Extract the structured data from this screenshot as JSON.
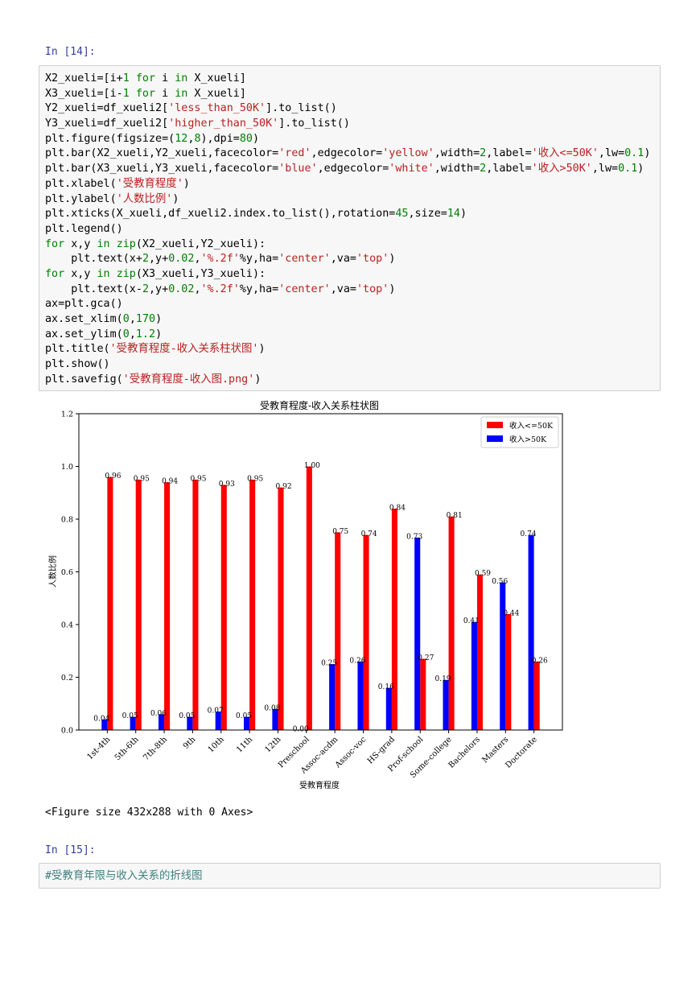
{
  "cells": [
    {
      "prompt": "In  [14]:",
      "code_lines": [
        [
          [
            "plain",
            "X2_xueli=[i+"
          ],
          [
            "num",
            "1"
          ],
          [
            "plain",
            " "
          ],
          [
            "kw",
            "for"
          ],
          [
            "plain",
            " i "
          ],
          [
            "kw",
            "in"
          ],
          [
            "plain",
            " X_xueli]"
          ]
        ],
        [
          [
            "plain",
            "X3_xueli=[i-"
          ],
          [
            "num",
            "1"
          ],
          [
            "plain",
            " "
          ],
          [
            "kw",
            "for"
          ],
          [
            "plain",
            " i "
          ],
          [
            "kw",
            "in"
          ],
          [
            "plain",
            " X_xueli]"
          ]
        ],
        [
          [
            "plain",
            "Y2_xueli=df_xueli2["
          ],
          [
            "str",
            "'less_than_50K'"
          ],
          [
            "plain",
            "].to_list()"
          ]
        ],
        [
          [
            "plain",
            "Y3_xueli=df_xueli2["
          ],
          [
            "str",
            "'higher_than_50K'"
          ],
          [
            "plain",
            "].to_list()"
          ]
        ],
        [
          [
            "plain",
            "plt.figure(figsize=("
          ],
          [
            "num",
            "12"
          ],
          [
            "plain",
            ","
          ],
          [
            "num",
            "8"
          ],
          [
            "plain",
            "),dpi="
          ],
          [
            "num",
            "80"
          ],
          [
            "plain",
            ")"
          ]
        ],
        [
          [
            "plain",
            "plt.bar(X2_xueli,Y2_xueli,facecolor="
          ],
          [
            "str",
            "'red'"
          ],
          [
            "plain",
            ",edgecolor="
          ],
          [
            "str",
            "'yellow'"
          ],
          [
            "plain",
            ",width="
          ],
          [
            "num",
            "2"
          ],
          [
            "plain",
            ",label="
          ],
          [
            "str",
            "'收入<=50K'"
          ],
          [
            "plain",
            ",lw="
          ],
          [
            "num",
            "0.1"
          ],
          [
            "plain",
            ")"
          ]
        ],
        [
          [
            "plain",
            "plt.bar(X3_xueli,Y3_xueli,facecolor="
          ],
          [
            "str",
            "'blue'"
          ],
          [
            "plain",
            ",edgecolor="
          ],
          [
            "str",
            "'white'"
          ],
          [
            "plain",
            ",width="
          ],
          [
            "num",
            "2"
          ],
          [
            "plain",
            ",label="
          ],
          [
            "str",
            "'收入>50K'"
          ],
          [
            "plain",
            ",lw="
          ],
          [
            "num",
            "0.1"
          ],
          [
            "plain",
            ")"
          ]
        ],
        [
          [
            "plain",
            "plt.xlabel("
          ],
          [
            "str",
            "'受教育程度'"
          ],
          [
            "plain",
            ")"
          ]
        ],
        [
          [
            "plain",
            "plt.ylabel("
          ],
          [
            "str",
            "'人数比例'"
          ],
          [
            "plain",
            ")"
          ]
        ],
        [
          [
            "plain",
            "plt.xticks(X_xueli,df_xueli2.index.to_list(),rotation="
          ],
          [
            "num",
            "45"
          ],
          [
            "plain",
            ",size="
          ],
          [
            "num",
            "14"
          ],
          [
            "plain",
            ")"
          ]
        ],
        [
          [
            "plain",
            "plt.legend()"
          ]
        ],
        [
          [
            "kw",
            "for"
          ],
          [
            "plain",
            " x,y "
          ],
          [
            "kw",
            "in"
          ],
          [
            "plain",
            " "
          ],
          [
            "kw",
            "zip"
          ],
          [
            "plain",
            "(X2_xueli,Y2_xueli):"
          ]
        ],
        [
          [
            "plain",
            "    plt.text(x+"
          ],
          [
            "num",
            "2"
          ],
          [
            "plain",
            ",y+"
          ],
          [
            "num",
            "0.02"
          ],
          [
            "plain",
            ","
          ],
          [
            "str",
            "'%.2f'"
          ],
          [
            "plain",
            "%y,ha="
          ],
          [
            "str",
            "'center'"
          ],
          [
            "plain",
            ",va="
          ],
          [
            "str",
            "'top'"
          ],
          [
            "plain",
            ")"
          ]
        ],
        [
          [
            "kw",
            "for"
          ],
          [
            "plain",
            " x,y "
          ],
          [
            "kw",
            "in"
          ],
          [
            "plain",
            " "
          ],
          [
            "kw",
            "zip"
          ],
          [
            "plain",
            "(X3_xueli,Y3_xueli):"
          ]
        ],
        [
          [
            "plain",
            "    plt.text(x-"
          ],
          [
            "num",
            "2"
          ],
          [
            "plain",
            ",y+"
          ],
          [
            "num",
            "0.02"
          ],
          [
            "plain",
            ","
          ],
          [
            "str",
            "'%.2f'"
          ],
          [
            "plain",
            "%y,ha="
          ],
          [
            "str",
            "'center'"
          ],
          [
            "plain",
            ",va="
          ],
          [
            "str",
            "'top'"
          ],
          [
            "plain",
            ")"
          ]
        ],
        [
          [
            "plain",
            "ax=plt.gca()"
          ]
        ],
        [
          [
            "plain",
            "ax.set_xlim("
          ],
          [
            "num",
            "0"
          ],
          [
            "plain",
            ","
          ],
          [
            "num",
            "170"
          ],
          [
            "plain",
            ")"
          ]
        ],
        [
          [
            "plain",
            "ax.set_ylim("
          ],
          [
            "num",
            "0"
          ],
          [
            "plain",
            ","
          ],
          [
            "num",
            "1.2"
          ],
          [
            "plain",
            ")"
          ]
        ],
        [
          [
            "plain",
            "plt.title("
          ],
          [
            "str",
            "'受教育程度-收入关系柱状图'"
          ],
          [
            "plain",
            ")"
          ]
        ],
        [
          [
            "plain",
            "plt.show()"
          ]
        ],
        [
          [
            "plain",
            "plt.savefig("
          ],
          [
            "str",
            "'受教育程度-收入图.png'"
          ],
          [
            "plain",
            ")"
          ]
        ]
      ]
    },
    {
      "prompt": "In  [15]:",
      "code_lines": [
        [
          [
            "com",
            "#受教育年限与收入关系的折线图"
          ]
        ]
      ]
    }
  ],
  "output_text": "<Figure size 432x288 with 0 Axes>",
  "colors": {
    "red": "#ff0000",
    "blue": "#0000ff",
    "prompt": "#303f9f"
  },
  "chart_data": {
    "type": "bar",
    "title": "受教育程度-收入关系柱状图",
    "xlabel": "受教育程度",
    "ylabel": "人数比例",
    "ylim": [
      0,
      1.2
    ],
    "yticks": [
      "0.0",
      "0.2",
      "0.4",
      "0.6",
      "0.8",
      "1.0",
      "1.2"
    ],
    "legend_position": "top-right",
    "categories": [
      "1st-4th",
      "5th-6th",
      "7th-8th",
      "9th",
      "10th",
      "11th",
      "12th",
      "Preschool",
      "Assoc-acdm",
      "Assoc-voc",
      "HS-grad",
      "Prof-school",
      "Some-college",
      "Bachelors",
      "Masters",
      "Doctorate"
    ],
    "series": [
      {
        "name": "收入<=50K",
        "color": "#ff0000",
        "values": [
          0.96,
          0.95,
          0.94,
          0.95,
          0.93,
          0.95,
          0.92,
          1.0,
          0.75,
          0.74,
          0.84,
          0.27,
          0.81,
          0.59,
          0.44,
          0.26
        ],
        "labels": [
          "0.96",
          "0.95",
          "0.94",
          "0.95",
          "0.93",
          "0.95",
          "0.92",
          "1.00",
          "0.75",
          "0.74",
          "0.84",
          "0.27",
          "0.81",
          "0.59",
          "0.44",
          "0.26"
        ]
      },
      {
        "name": "收入>50K",
        "color": "#0000ff",
        "values": [
          0.04,
          0.05,
          0.06,
          0.05,
          0.07,
          0.05,
          0.08,
          0.0,
          0.25,
          0.26,
          0.16,
          0.73,
          0.19,
          0.41,
          0.56,
          0.74
        ],
        "labels": [
          "0.04",
          "0.05",
          "0.06",
          "0.05",
          "0.07",
          "0.05",
          "0.08",
          "0.00",
          "0.25",
          "0.26",
          "0.16",
          "0.73",
          "0.19",
          "0.41",
          "0.56",
          "0.74"
        ]
      }
    ]
  }
}
